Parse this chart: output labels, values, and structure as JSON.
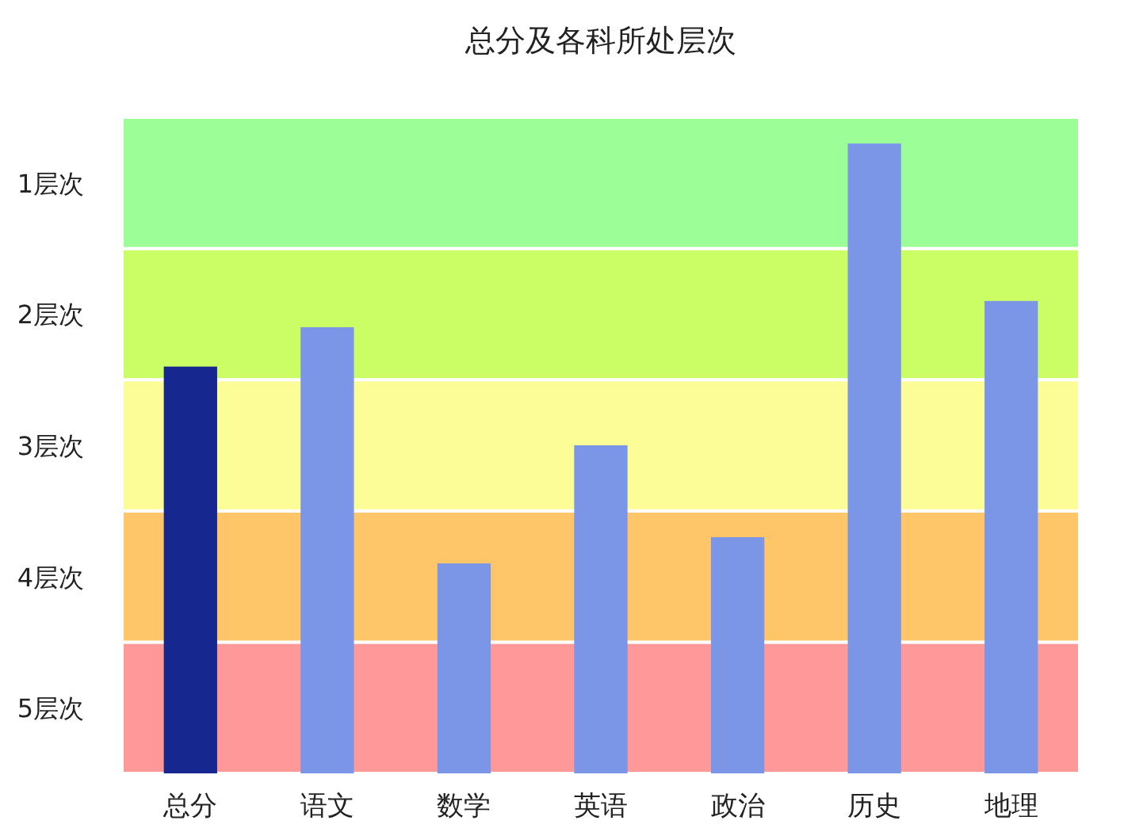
{
  "chart_data": {
    "type": "bar",
    "title": "总分及各科所处层次",
    "categories": [
      "总分",
      "语文",
      "数学",
      "英语",
      "政治",
      "历史",
      "地理"
    ],
    "values": [
      -3.1,
      -3.4,
      -1.6,
      -2.5,
      -1.8,
      -4.8,
      -3.6
    ],
    "base": [
      5.5,
      5.5,
      5.5,
      5.5,
      5.5,
      5.5,
      5.5
    ],
    "colors": [
      "#162790",
      "#7b96e6",
      "#7b96e6",
      "#7b96e6",
      "#7b96e6",
      "#7b96e6",
      "#7b96e6"
    ],
    "ylim": [
      5.5,
      0.5
    ],
    "yticks": [
      {
        "value": 1,
        "label": "1层次"
      },
      {
        "value": 2,
        "label": "2层次"
      },
      {
        "value": 3,
        "label": "3层次"
      },
      {
        "value": 4,
        "label": "4层次"
      },
      {
        "value": 5,
        "label": "5层次"
      }
    ],
    "bands": [
      {
        "axis": "y",
        "from": 5.5,
        "to": 4.5,
        "color": "#ff9999"
      },
      {
        "axis": "y",
        "from": 4.5,
        "to": 3.5,
        "color": "#fec669"
      },
      {
        "axis": "y",
        "from": 3.5,
        "to": 2.5,
        "color": "#fdfd97"
      },
      {
        "axis": "y",
        "from": 2.5,
        "to": 1.5,
        "color": "#cafe64"
      },
      {
        "axis": "y",
        "from": 1.5,
        "to": 0.5,
        "color": "#9cfe96"
      }
    ],
    "grid": false
  }
}
